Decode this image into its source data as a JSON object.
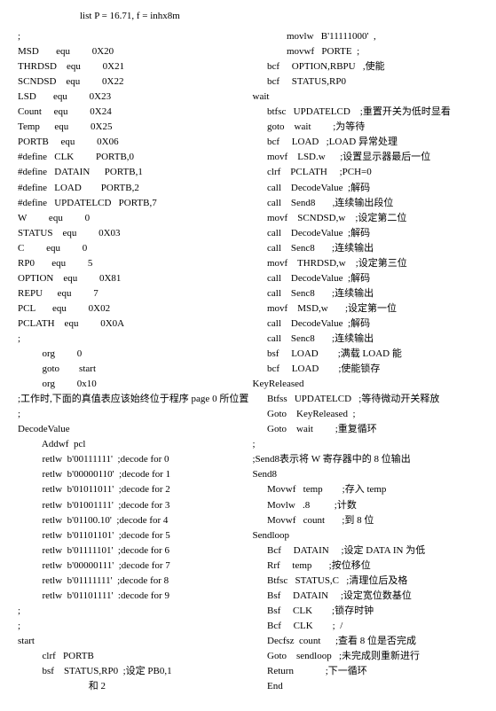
{
  "top": "list P = 16.71, f = inhx8m",
  "left": [
    ";",
    "MSD       equ         0X20",
    "THRDSD    equ         0X21",
    "SCNDSD    equ         0X22",
    "LSD       equ         0X23",
    "Count     equ         0X24",
    "Temp      equ         0X25",
    "PORTB     equ         0X06",
    "#define   CLK         PORTB,0",
    "#define   DATAIN      PORTB,1",
    "#define   LOAD        PORTB,2",
    "#define   UPDATELCD   PORTB,7",
    "W         equ         0",
    "STATUS    equ         0X03",
    "C         equ         0",
    "RP0       equ         5",
    "OPTION    equ         0X81",
    "REPU      equ         7",
    "PCL       equ         0X02",
    "PCLATH    equ         0X0A",
    ";",
    "          org         0",
    "          goto        start",
    "          org         0x10",
    ";工作时,下面的真值表应该始终位于程序 page 0 所位置",
    ";",
    "DecodeValue",
    "          Addwf  pcl",
    "          retlw  b'00111111'  ;decode for 0",
    "          retlw  b'00000110'  ;decode for 1",
    "          retlw  b'01011011'  ;decode for 2",
    "          retlw  b'01001111'  ;decode for 3",
    "          retlw  b'01100.10'  ;decode for 4",
    "          retlw  b'01101101'  ;decode for 5",
    "          retlw  b'01111101'  ;decode for 6",
    "          retlw  b'00000111'  ;decode for 7",
    "          retlw  b'01111111'  ;decode for 8",
    "          retlw  b'01101111'  :decode for 9",
    ";",
    ";",
    "start",
    "          clrf   PORTB",
    "          bsf    STATUS,RP0  ;设定 PB0,1",
    "                             和 2"
  ],
  "right": [
    "              movlw   B'11111000'  ,",
    "              movwf   PORTE  ;",
    "      bcf     OPTION,RBPU   ,使能",
    "      bcf     STATUS,RP0",
    "wait",
    "      btfsc   UPDATELCD    ;重置开关为低时显看",
    "      goto    wait         ;为等待",
    "      bcf     LOAD   ;LOAD 异常处理",
    "      movf    LSD.w      ;设置显示器最后一位",
    "      clrf    PCLATH     ;PCH=0",
    "      call    DecodeValue  ;解码",
    "      call    Send8       ,连续输出段位",
    "      movf    SCNDSD,w    ;设定第二位",
    "      call    DecodeValue  ;解码",
    "      call    Senc8       ;连续输出",
    "      movf    THRDSD,w    ;设定第三位",
    "      call    DecodeValue  ;解码",
    "      call    Senc8       ;连续输出",
    "      movf    MSD,w       ;设定第一位",
    "      call    DecodeValue  ;解码",
    "      call    Senc8       ;连续输出",
    "      bsf     LOAD        ;满载 LOAD 能",
    "      bcf     LOAD        ;使能锁存",
    "KeyReleased",
    "      Btfss   UPDATELCD   ;等待微动开关释放",
    "      Goto    KeyReleased  ;",
    "      Goto    wait         ;重复循环",
    ";",
    ";Send8表示将 W 寄存器中的 8 位输出",
    "Send8",
    "      Movwf   temp        ;存入 temp",
    "      Movlw   .8          ;计数",
    "      Movwf   count       ;到 8 位",
    "Sendloop",
    "      Bcf     DATAIN     ;设定 DATA IN 为低",
    "      Rrf     temp       ;按位移位",
    "      Btfsc   STATUS,C   ;清理位后及格",
    "      Bsf     DATAIN     ;设定宽位数基位",
    "      Bsf     CLK        ;锁存时钟",
    "      Bcf     CLK        ;  /",
    "      Decfsz  count      ;查看 8 位是否完成",
    "      Goto    sendloop   ;未完成则重新进行",
    "      Return             ;下一循环",
    "      End"
  ]
}
